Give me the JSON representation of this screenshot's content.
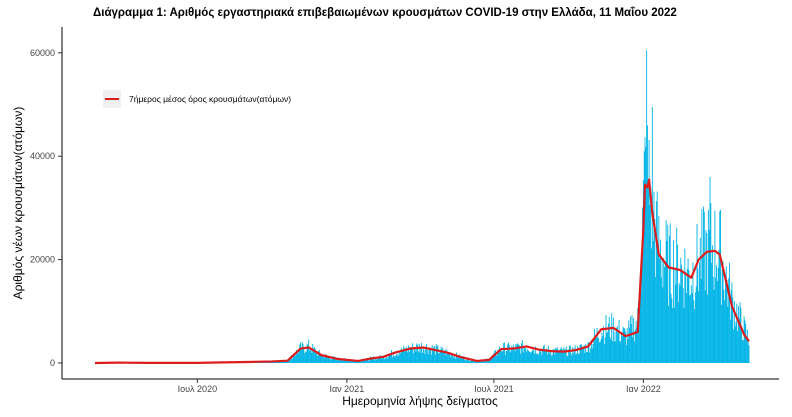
{
  "chart_data": {
    "type": "bar",
    "title": "Διάγραμμα 1: Αριθμός εργαστηριακά επιβεβαιωμένων κρουσμάτων COVID-19 στην Ελλάδα, 11 Μαΐου 2022",
    "xlabel": "Ημερομηνία λήψης δείγματος",
    "ylabel": "Αριθμός νέων κρουσμάτων(ατόμων)",
    "x_range": [
      "2020-02-26",
      "2022-05-11"
    ],
    "ylim": [
      0,
      65000
    ],
    "y_ticks": [
      0,
      20000,
      40000,
      60000
    ],
    "x_ticks": [
      {
        "date": "2020-07-01",
        "label": "Ιουλ 2020"
      },
      {
        "date": "2021-01-01",
        "label": "Ιαν 2021"
      },
      {
        "date": "2021-07-01",
        "label": "Ιουλ 2021"
      },
      {
        "date": "2022-01-01",
        "label": "Ιαν 2022"
      }
    ],
    "grid": false,
    "legend": {
      "position": "top-left",
      "entries": [
        "7ήμερος μέσος όρος κρουσμάτων(ατόμων)"
      ]
    },
    "series": [
      {
        "type": "bar",
        "color": "#00b4e6",
        "note_values": "daily cases, bar series",
        "anchor_dates": [
          "2020-02-26",
          "2020-03-25",
          "2020-05-01",
          "2020-07-01",
          "2020-08-01",
          "2020-09-01",
          "2020-10-01",
          "2020-10-20",
          "2020-11-05",
          "2020-11-15",
          "2020-12-01",
          "2020-12-20",
          "2021-01-01",
          "2021-01-15",
          "2021-02-01",
          "2021-02-15",
          "2021-03-01",
          "2021-03-20",
          "2021-04-05",
          "2021-04-20",
          "2021-05-05",
          "2021-05-20",
          "2021-06-10",
          "2021-06-25",
          "2021-07-10",
          "2021-07-25",
          "2021-08-10",
          "2021-08-25",
          "2021-09-10",
          "2021-09-25",
          "2021-10-10",
          "2021-10-25",
          "2021-11-10",
          "2021-11-25",
          "2021-12-10",
          "2021-12-25",
          "2022-01-03",
          "2022-01-08",
          "2022-01-20",
          "2022-02-01",
          "2022-02-15",
          "2022-03-01",
          "2022-03-15",
          "2022-03-25",
          "2022-04-05",
          "2022-04-20",
          "2022-05-05",
          "2022-05-11"
        ],
        "anchor_values": [
          0,
          70,
          20,
          20,
          120,
          200,
          300,
          450,
          2800,
          3200,
          1500,
          800,
          600,
          400,
          900,
          1200,
          2000,
          2800,
          3200,
          2600,
          2000,
          1200,
          400,
          700,
          2800,
          2800,
          3200,
          2600,
          2400,
          2200,
          2500,
          3200,
          6500,
          6800,
          5200,
          8000,
          36000,
          34000,
          22000,
          19000,
          18500,
          17000,
          21000,
          22500,
          21500,
          12000,
          6500,
          4500
        ],
        "peaks": [
          {
            "date": "2022-01-05",
            "value": 60500
          },
          {
            "date": "2022-01-12",
            "value": 49500
          },
          {
            "date": "2022-03-24",
            "value": 36000
          }
        ]
      },
      {
        "type": "line",
        "color": "#dd1c1c",
        "name": "7ήμερος μέσος όρος κρουσμάτων(ατόμων)",
        "points": [
          [
            "2020-02-26",
            0
          ],
          [
            "2020-03-25",
            80
          ],
          [
            "2020-05-01",
            30
          ],
          [
            "2020-07-01",
            20
          ],
          [
            "2020-08-01",
            120
          ],
          [
            "2020-09-01",
            200
          ],
          [
            "2020-10-01",
            300
          ],
          [
            "2020-10-20",
            450
          ],
          [
            "2020-11-05",
            2800
          ],
          [
            "2020-11-15",
            3000
          ],
          [
            "2020-12-01",
            1500
          ],
          [
            "2020-12-20",
            800
          ],
          [
            "2021-01-01",
            600
          ],
          [
            "2021-01-15",
            400
          ],
          [
            "2021-02-01",
            900
          ],
          [
            "2021-02-15",
            1200
          ],
          [
            "2021-03-01",
            2000
          ],
          [
            "2021-03-20",
            2800
          ],
          [
            "2021-04-05",
            3000
          ],
          [
            "2021-04-20",
            2500
          ],
          [
            "2021-05-05",
            2000
          ],
          [
            "2021-05-20",
            1200
          ],
          [
            "2021-06-10",
            400
          ],
          [
            "2021-06-25",
            600
          ],
          [
            "2021-07-10",
            2700
          ],
          [
            "2021-07-25",
            2800
          ],
          [
            "2021-08-10",
            3200
          ],
          [
            "2021-08-25",
            2600
          ],
          [
            "2021-09-10",
            2300
          ],
          [
            "2021-09-25",
            2200
          ],
          [
            "2021-10-10",
            2500
          ],
          [
            "2021-10-25",
            3200
          ],
          [
            "2021-11-10",
            6500
          ],
          [
            "2021-11-25",
            6800
          ],
          [
            "2021-12-10",
            5200
          ],
          [
            "2021-12-25",
            6000
          ],
          [
            "2022-01-01",
            26000
          ],
          [
            "2022-01-03",
            34500
          ],
          [
            "2022-01-06",
            34000
          ],
          [
            "2022-01-08",
            35500
          ],
          [
            "2022-01-12",
            29000
          ],
          [
            "2022-01-20",
            21000
          ],
          [
            "2022-02-01",
            18500
          ],
          [
            "2022-02-15",
            18000
          ],
          [
            "2022-03-01",
            16500
          ],
          [
            "2022-03-10",
            20000
          ],
          [
            "2022-03-20",
            21500
          ],
          [
            "2022-03-30",
            21700
          ],
          [
            "2022-04-05",
            21000
          ],
          [
            "2022-04-20",
            11000
          ],
          [
            "2022-05-05",
            5500
          ],
          [
            "2022-05-11",
            4200
          ]
        ]
      }
    ]
  }
}
